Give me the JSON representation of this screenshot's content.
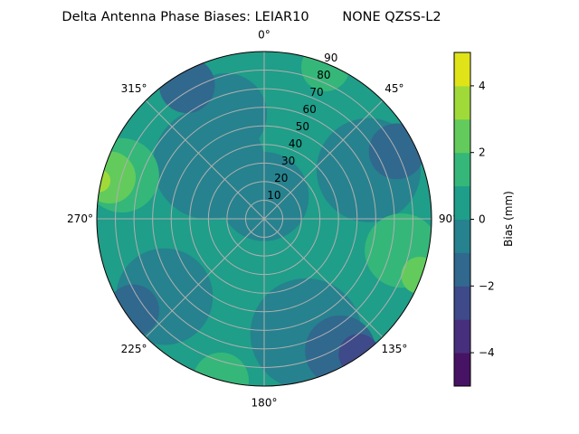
{
  "chart_data": {
    "type": "contour",
    "projection": "polar",
    "title": "Delta Antenna Phase Biases: LEIAR10        NONE QZSS-L2",
    "angle_direction": "clockwise",
    "angle_zero": "top",
    "angle_tick_labels": [
      "0°",
      "45°",
      "90°",
      "135°",
      "180°",
      "225°",
      "270°",
      "315°"
    ],
    "angle_ticks": [
      0,
      45,
      90,
      135,
      180,
      225,
      270,
      315
    ],
    "radial_ticks": [
      10,
      20,
      30,
      40,
      50,
      60,
      70,
      80,
      90
    ],
    "radial_tick_labels": [
      "10",
      "20",
      "30",
      "40",
      "50",
      "60",
      "70",
      "80",
      "90"
    ],
    "rlim": [
      0,
      90
    ],
    "grid": true,
    "colorbar": {
      "label": "Bias (mm)",
      "levels": [
        -5,
        -4,
        -3,
        -2,
        -1,
        0,
        1,
        2,
        3,
        4,
        5
      ],
      "colors": [
        "#471365",
        "#472f7d",
        "#3e4a89",
        "#31688e",
        "#26828e",
        "#1f9e89",
        "#35b779",
        "#62cb5c",
        "#a0da39",
        "#dfe318"
      ],
      "ticks": [
        -4,
        -2,
        0,
        2,
        4
      ],
      "tick_labels": [
        "−4",
        "−2",
        "0",
        "2",
        "4"
      ],
      "placement": "right"
    },
    "base_value": 0.5,
    "regions": [
      {
        "azimuth": 0,
        "zenith": 12,
        "spread": 24,
        "value": -0.5
      },
      {
        "azimuth": 315,
        "zenith": 42,
        "spread": 30,
        "value": -0.5
      },
      {
        "azimuth": 340,
        "zenith": 60,
        "spread": 22,
        "value": -0.5
      },
      {
        "azimuth": 65,
        "zenith": 62,
        "spread": 28,
        "value": -0.5
      },
      {
        "azimuth": 232,
        "zenith": 68,
        "spread": 26,
        "value": -0.5
      },
      {
        "azimuth": 160,
        "zenith": 66,
        "spread": 30,
        "value": -0.5
      },
      {
        "azimuth": 330,
        "zenith": 83,
        "spread": 15,
        "value": -1.5
      },
      {
        "azimuth": 63,
        "zenith": 80,
        "spread": 15,
        "value": -1.5
      },
      {
        "azimuth": 235,
        "zenith": 86,
        "spread": 14,
        "value": -1.5
      },
      {
        "azimuth": 150,
        "zenith": 82,
        "spread": 19,
        "value": -1.5
      },
      {
        "azimuth": 145,
        "zenith": 89,
        "spread": 11,
        "value": -2.5
      },
      {
        "azimuth": 22,
        "zenith": 88,
        "spread": 13,
        "value": 1.5
      },
      {
        "azimuth": 103,
        "zenith": 76,
        "spread": 20,
        "value": 1.5
      },
      {
        "azimuth": 287,
        "zenith": 80,
        "spread": 20,
        "value": 1.5
      },
      {
        "azimuth": 195,
        "zenith": 90,
        "spread": 15,
        "value": 1.5
      },
      {
        "azimuth": 110,
        "zenith": 89,
        "spread": 10,
        "value": 2.5
      },
      {
        "azimuth": 285,
        "zenith": 86,
        "spread": 14,
        "value": 2.5
      },
      {
        "azimuth": 283,
        "zenith": 91,
        "spread": 6,
        "value": 3.5
      }
    ]
  }
}
